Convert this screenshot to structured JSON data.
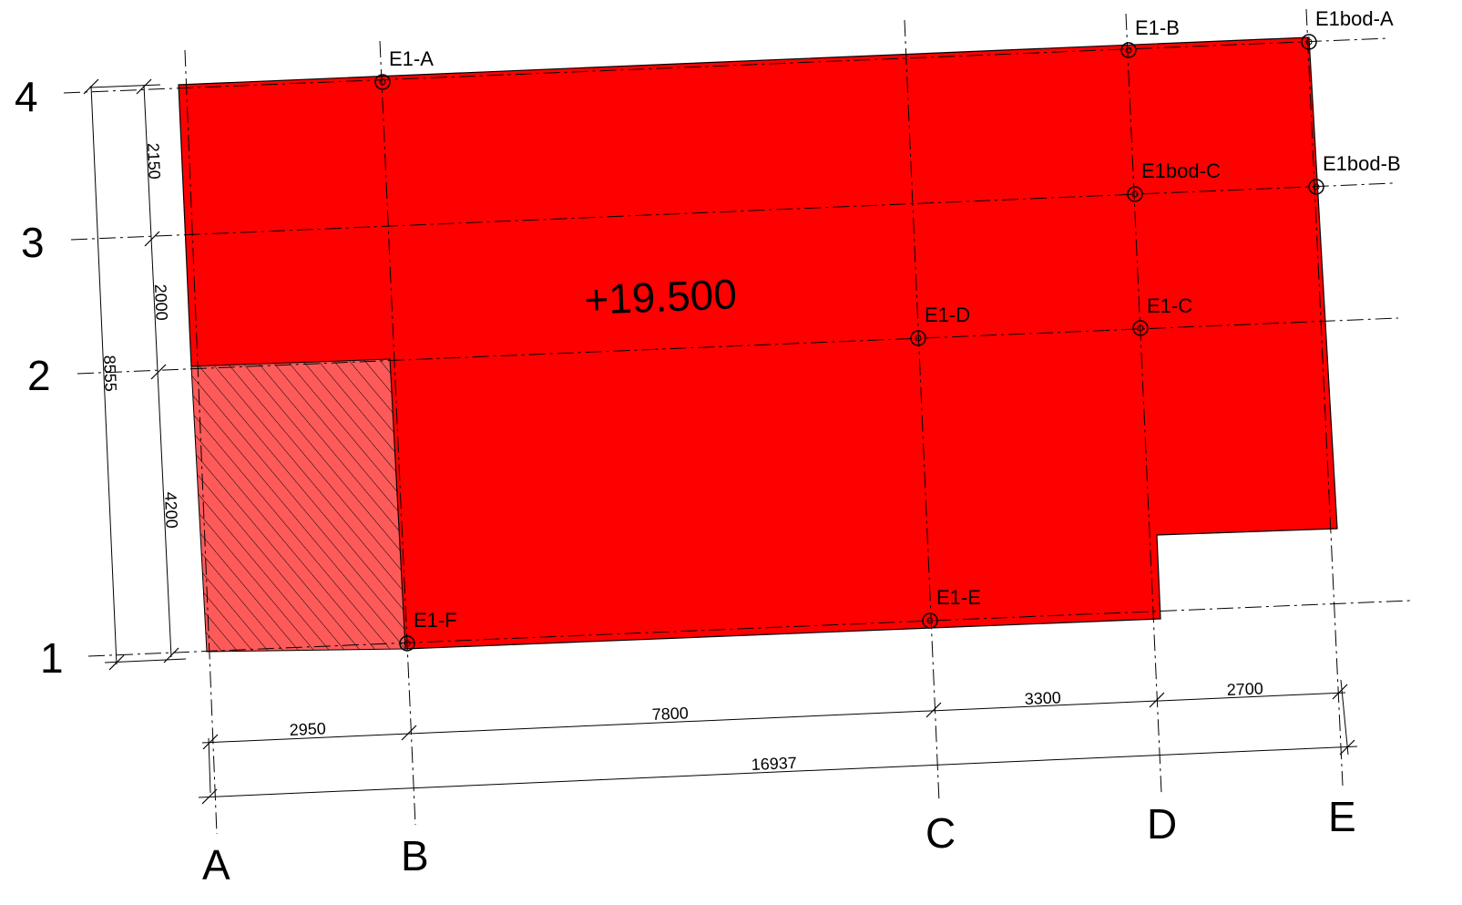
{
  "level": "+19.500",
  "axes_columns": [
    "A",
    "B",
    "C",
    "D",
    "E"
  ],
  "axes_rows": [
    "4",
    "3",
    "2",
    "1"
  ],
  "points": [
    "E1-A",
    "E1-B",
    "E1bod-A",
    "E1bod-C",
    "E1bod-B",
    "E1-D",
    "E1-C",
    "E1-E",
    "E1-F"
  ],
  "dims_horizontal": [
    "2950",
    "7800",
    "3300",
    "2700"
  ],
  "dim_horizontal_total": "16937",
  "dims_vertical": [
    "2150",
    "2000",
    "4200"
  ],
  "dim_vertical_total": "8555",
  "colors": {
    "slab": "#ff0000",
    "hatch": "#ff5555",
    "lines": "#000000"
  }
}
